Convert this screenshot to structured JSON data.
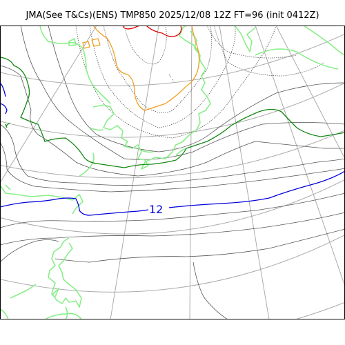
{
  "header": {
    "title": "JMA(See T&Cs)(ENS) TMP850 2025/12/08 12Z FT=96 (init 0412Z)"
  },
  "map": {
    "contour_label": "12",
    "colors": {
      "frame": "#000000",
      "graticule": "#aaaaaa",
      "isotherm": "#555555",
      "dotted_isotherm": "#555555",
      "coast": "#88ee88",
      "iso_0": "#0000dd",
      "iso_12_green": "#118811",
      "orange": "#f0a020",
      "red": "#dd0000"
    }
  }
}
